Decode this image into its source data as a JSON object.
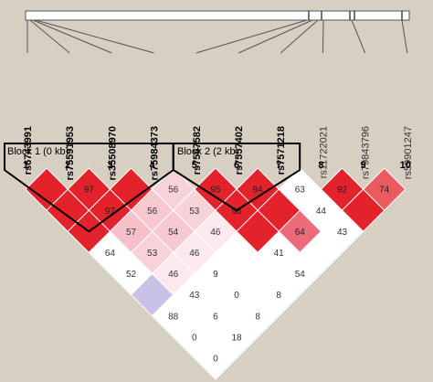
{
  "snps": [
    "rs6743991",
    "rs75591953",
    "rs35508970",
    "rs75984373",
    "rs7567582",
    "rs7557402",
    "rs7571218",
    "rs11722021",
    "rs79843796",
    "rs59901247"
  ],
  "markers": [
    "1",
    "2",
    "3",
    "4",
    "5",
    "6",
    "7",
    "8",
    "9",
    "10"
  ],
  "blocks": [
    "Block 1 (0 kb)",
    "Block 2 (2 kb)"
  ],
  "ld": {
    "rows": [
      [
        {
          "color": "#e3222b"
        },
        {
          "color": "#e3222b",
          "value": 97
        },
        {
          "color": "#e3222b"
        },
        {
          "color": "#f8d2d9",
          "value": 56
        },
        {
          "color": "#e3222b",
          "value": 95
        },
        {
          "color": "#e3222b",
          "value": 94
        },
        {
          "color": "#ffffff",
          "value": 63
        },
        {
          "color": "#e3222b",
          "value": 92
        },
        {
          "color": "#ea5b5f",
          "value": 74
        }
      ],
      [
        {
          "color": "#e3222b"
        },
        {
          "color": "#e3222b",
          "value": 97
        },
        {
          "color": "#f6c8d0",
          "value": 56
        },
        {
          "color": "#f8d2d9",
          "value": 53
        },
        {
          "color": "#e3222b",
          "value": 98
        },
        {
          "color": "#e3222b"
        },
        {
          "color": "#ffffff",
          "value": 44
        },
        {
          "color": "#e3222b"
        }
      ],
      [
        {
          "color": "#e3222b"
        },
        {
          "color": "#f5c0c8",
          "value": 57
        },
        {
          "color": "#f6c8d0",
          "value": 54
        },
        {
          "color": "#fce9ed",
          "value": 46
        },
        {
          "color": "#e3222b"
        },
        {
          "color": "#ec6b78",
          "value": 64
        },
        {
          "color": "#ffffff",
          "value": 43
        }
      ],
      [
        {
          "color": "#ffffff",
          "value": 64
        },
        {
          "color": "#f8d2d9",
          "value": 53
        },
        {
          "color": "#fce9ed",
          "value": 46
        },
        {
          "color": "#ffffff"
        },
        {
          "color": "#ffffff",
          "value": 41
        },
        {
          "color": "#ffffff"
        }
      ],
      [
        {
          "color": "#ffffff",
          "value": 52
        },
        {
          "color": "#fce9ed",
          "value": 46
        },
        {
          "color": "#ffffff",
          "value": 9
        },
        {
          "color": "#ffffff"
        },
        {
          "color": "#ffffff",
          "value": 54
        }
      ],
      [
        {
          "color": "#c9c1e6"
        },
        {
          "color": "#ffffff",
          "value": 43
        },
        {
          "color": "#ffffff",
          "value": 0
        },
        {
          "color": "#ffffff",
          "value": 8
        }
      ],
      [
        {
          "color": "#ffffff",
          "value": 88
        },
        {
          "color": "#ffffff",
          "value": 6
        },
        {
          "color": "#ffffff",
          "value": 8
        }
      ],
      [
        {
          "color": "#ffffff",
          "value": 0
        },
        {
          "color": "#ffffff",
          "value": 18
        }
      ],
      [
        {
          "color": "#ffffff",
          "value": 0
        }
      ]
    ]
  }
}
